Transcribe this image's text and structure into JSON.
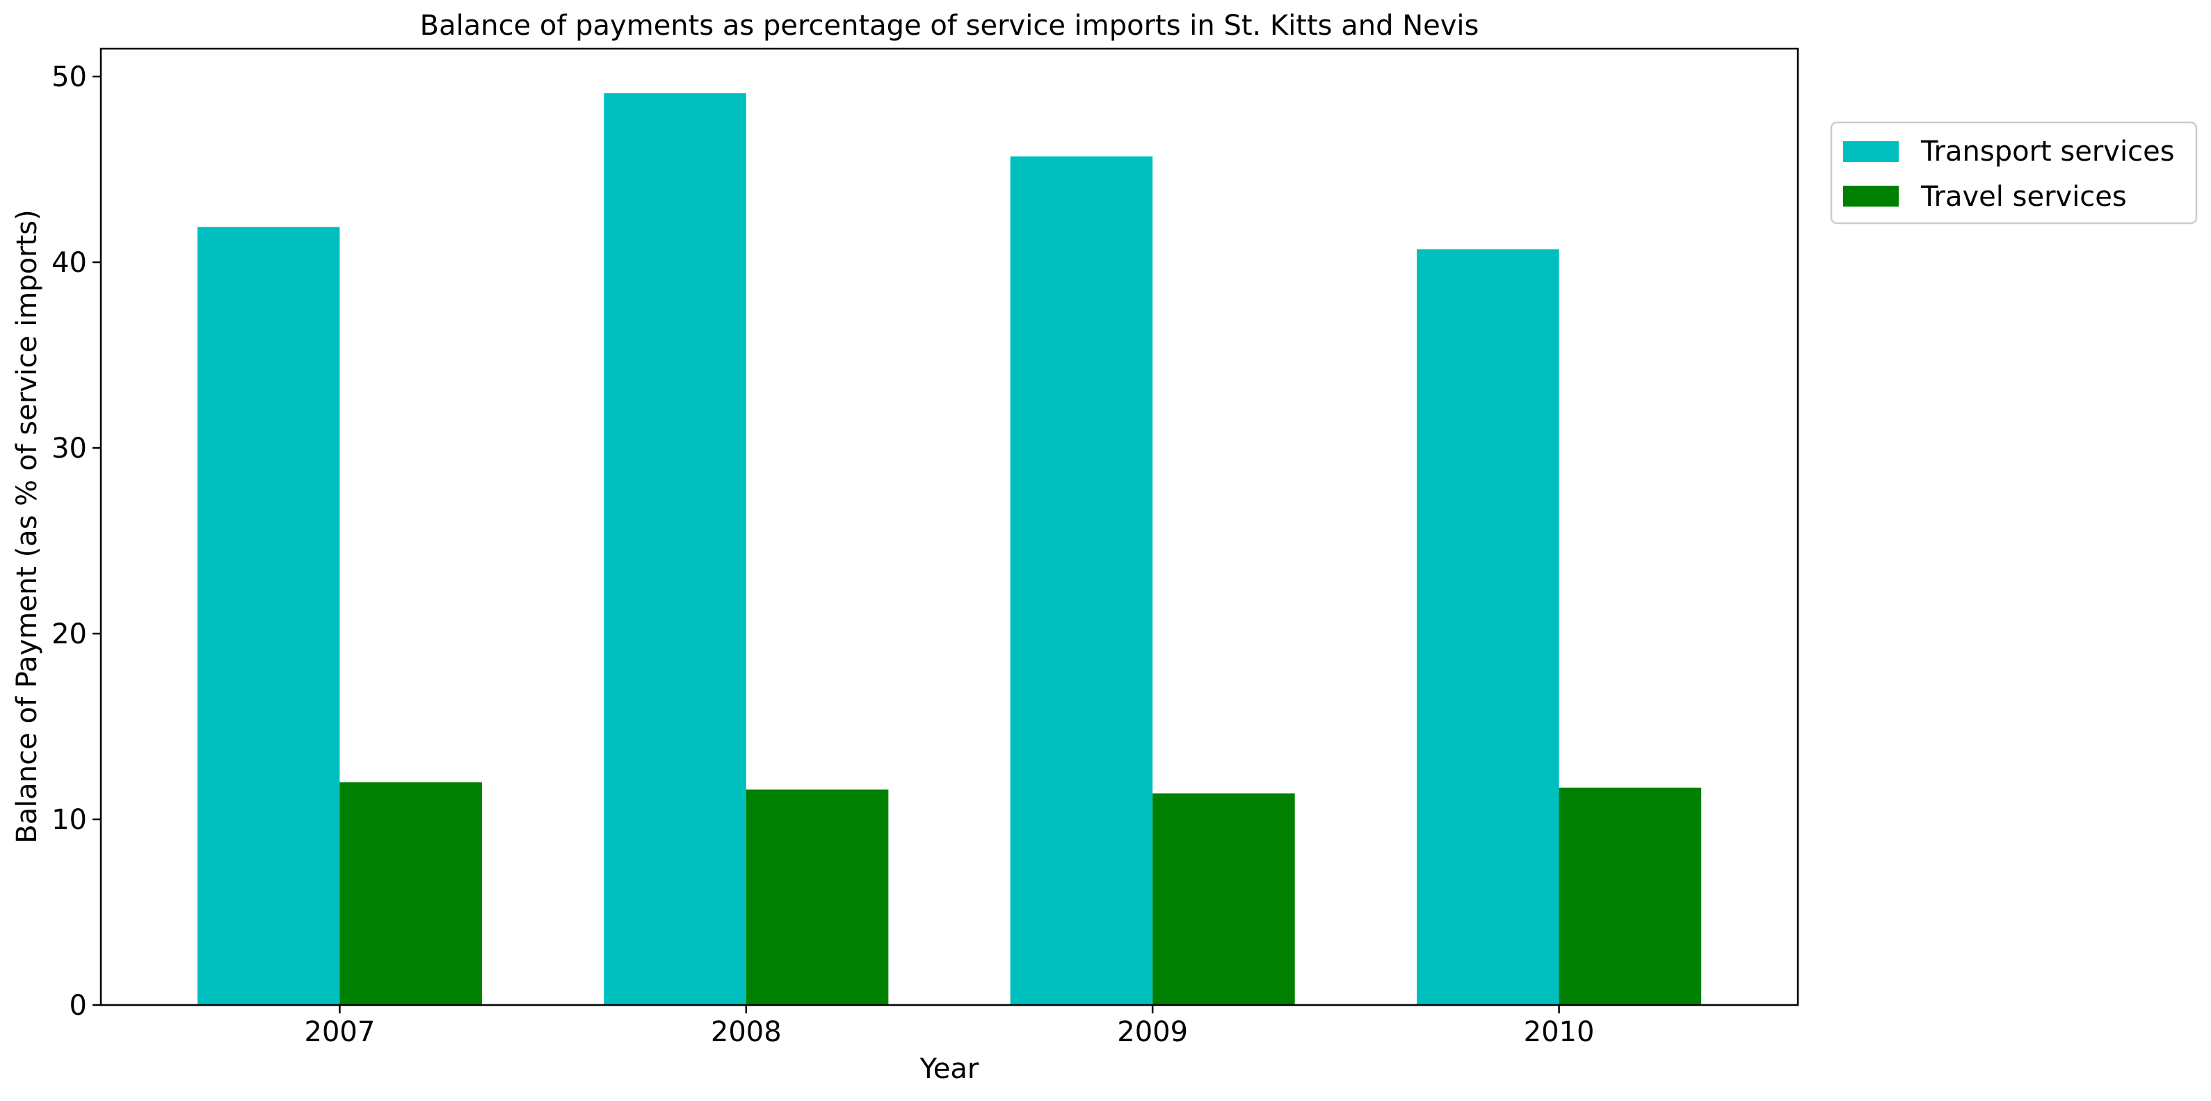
{
  "chart_data": {
    "type": "bar",
    "title": "Balance of payments as percentage of service imports in St. Kitts and Nevis",
    "xlabel": "Year",
    "ylabel": "Balance of Payment (as % of service imports)",
    "categories": [
      "2007",
      "2008",
      "2009",
      "2010"
    ],
    "ylim": [
      0,
      51.5
    ],
    "yticks": [
      0,
      10,
      20,
      30,
      40,
      50
    ],
    "grid": false,
    "legend_position": "top-right, outside plot",
    "series": [
      {
        "name": "Transport services",
        "color": "#00bfbf",
        "values": [
          41.9,
          49.1,
          45.7,
          40.7
        ]
      },
      {
        "name": "Travel services",
        "color": "#008000",
        "values": [
          12.0,
          11.6,
          11.4,
          11.7
        ]
      }
    ]
  }
}
